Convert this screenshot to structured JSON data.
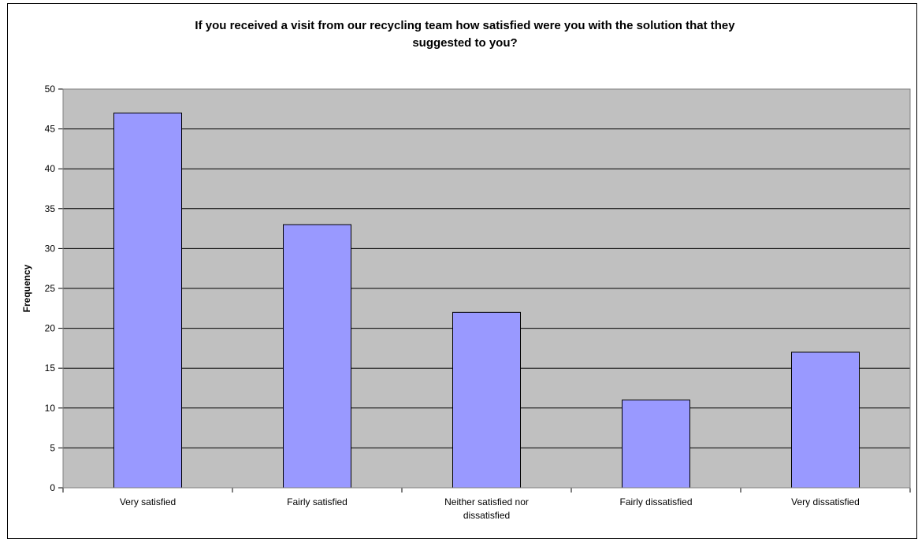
{
  "chart_data": {
    "type": "bar",
    "title": "If you received a visit from our recycling team how satisfied were you with the solution that they\nsuggested to you?",
    "xlabel": "",
    "ylabel": "Frequency",
    "categories": [
      "Very satisfied",
      "Fairly satisfied",
      "Neither satisfied nor dissatisfied",
      "Fairly dissatisfied",
      "Very dissatisfied"
    ],
    "category_lines": [
      [
        "Very satisfied"
      ],
      [
        "Fairly satisfied"
      ],
      [
        "Neither satisfied nor",
        "dissatisfied"
      ],
      [
        "Fairly dissatisfied"
      ],
      [
        "Very dissatisfied"
      ]
    ],
    "values": [
      47,
      33,
      22,
      11,
      17
    ],
    "ylim": [
      0,
      50
    ],
    "yticks": [
      0,
      5,
      10,
      15,
      20,
      25,
      30,
      35,
      40,
      45,
      50
    ],
    "grid": true,
    "legend": "none",
    "colors": {
      "bar": "#9999ff",
      "plot_bg": "#c0c0c0",
      "grid": "#000000"
    }
  }
}
